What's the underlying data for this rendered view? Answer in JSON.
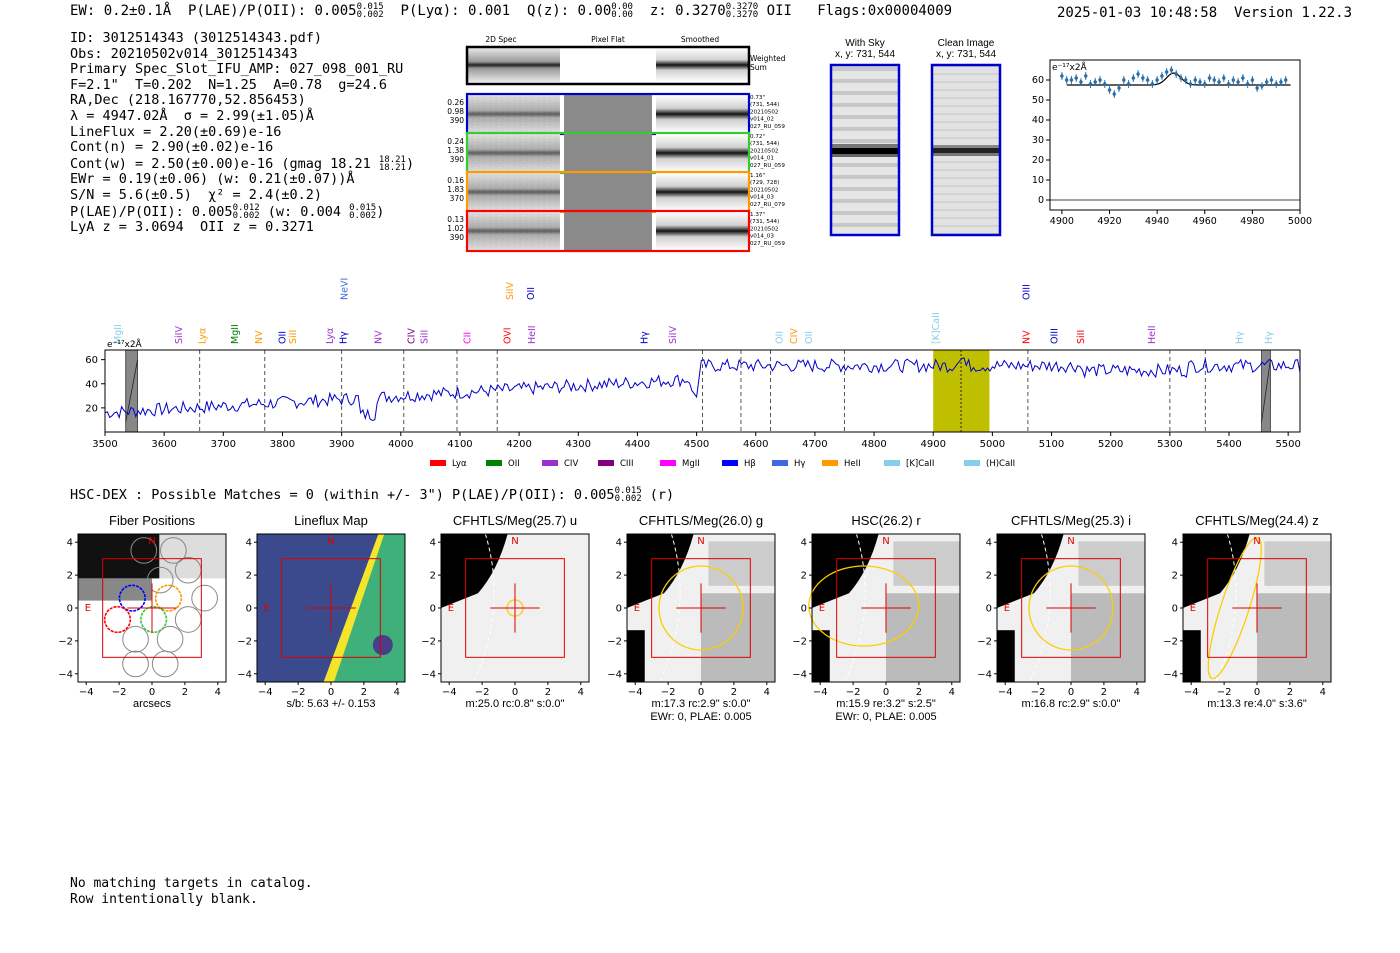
{
  "header": {
    "ew": "EW: 0.2±0.1Å",
    "plae_label": "P(LAE)/P(OII): 0.005",
    "plae_up": "0.015",
    "plae_lo": "0.002",
    "plya": "P(Lyα): 0.001",
    "qz_label": "Q(z): 0.00",
    "qz_up": "0.00",
    "qz_lo": "0.00",
    "z_label": "z: 0.3270",
    "z_up": "0.3270",
    "z_lo": "0.3270",
    "z_line": "OII",
    "flags": "Flags:0x00004009",
    "datetime": "2025-01-03 10:48:58",
    "version": "Version 1.22.3"
  },
  "info": {
    "id": "ID: 3012514343 (3012514343.pdf)",
    "obs": "Obs: 20210502v014_3012514343",
    "primary": "Primary Spec_Slot_IFU_AMP: 027_098_001_RU",
    "params": "F=2.1\"  T=0.202  N=1.25  A=0.78  g=24.6",
    "radec": "RA,Dec (218.167770,52.856453)",
    "lambda": "λ = 4947.02Å  σ = 2.99(±1.05)Å",
    "lineflux": "LineFlux = 2.20(±0.69)e-16",
    "contn": "Cont(n) = 2.90(±0.02)e-16",
    "contw": "Cont(w) = 2.50(±0.00)e-16 (gmag 18.21",
    "gmag_up": "18.21",
    "gmag_lo": "18.21",
    "ewr": "EWr = 0.19(±0.06) (w: 0.21(±0.07))Å",
    "sn": "S/N = 5.6(±0.5)  χ² = 2.4(±0.2)",
    "plae": "P(LAE)/P(OII): 0.005",
    "plae_up": "0.012",
    "plae_lo": "0.002",
    "plae_w": "(w: 0.004",
    "plae_w_up": "0.015",
    "plae_w_lo": "0.002",
    "lya": "LyA z = 3.0694  OII z = 0.3271"
  },
  "fiber_panel": {
    "headers": [
      "2D Spec",
      "Pixel Flat",
      "Smoothed"
    ],
    "weighted_label": [
      "Weighted",
      "Sum"
    ],
    "rows": [
      {
        "color": "#0000cc",
        "left": [
          "0.26",
          "0.98",
          "390"
        ],
        "right": [
          "0.73\"",
          "(731, 544)",
          "20210502",
          "v014_02",
          "027_RU_059"
        ]
      },
      {
        "color": "#33cc33",
        "left": [
          "0.24",
          "1.38",
          "390"
        ],
        "right": [
          "0.72\"",
          "(731, 544)",
          "20210502",
          "v014_01",
          "027_RU_059"
        ]
      },
      {
        "color": "#ff9900",
        "left": [
          "0.16",
          "1.83",
          "370"
        ],
        "right": [
          "1.16\"",
          "(729, 728)",
          "20210502",
          "v014_03",
          "027_RU_079"
        ]
      },
      {
        "color": "#ff0000",
        "left": [
          "0.13",
          "1.02",
          "390"
        ],
        "right": [
          "1.37\"",
          "(731, 544)",
          "20210502",
          "v014_03",
          "027_RU_059"
        ]
      }
    ]
  },
  "sky_panels": [
    {
      "title": "With Sky",
      "coords": "x, y: 731, 544"
    },
    {
      "title": "Clean Image",
      "coords": "x, y: 731, 544"
    }
  ],
  "chart_data": [
    {
      "type": "line",
      "name": "zoom-spectrum",
      "title": "",
      "unit_label": "e⁻¹⁷x2Å",
      "xlim": [
        4895,
        5000
      ],
      "ylim": [
        -5,
        70
      ],
      "xticks": [
        4900,
        4920,
        4940,
        4960,
        4980,
        5000
      ],
      "yticks": [
        0,
        10,
        20,
        30,
        40,
        50,
        60
      ],
      "x": [
        4900,
        4902,
        4904,
        4906,
        4908,
        4910,
        4912,
        4914,
        4916,
        4918,
        4920,
        4922,
        4924,
        4926,
        4928,
        4930,
        4932,
        4934,
        4936,
        4938,
        4940,
        4942,
        4944,
        4946,
        4948,
        4950,
        4952,
        4954,
        4956,
        4958,
        4960,
        4962,
        4964,
        4966,
        4968,
        4970,
        4972,
        4974,
        4976,
        4978,
        4980,
        4982,
        4984,
        4986,
        4988,
        4990,
        4992,
        4994
      ],
      "y": [
        62,
        60,
        60,
        61,
        59,
        62,
        58,
        59,
        60,
        58,
        55,
        53,
        56,
        60,
        58,
        61,
        63,
        61,
        60,
        58,
        60,
        62,
        64,
        65,
        63,
        61,
        60,
        58,
        60,
        59,
        58,
        61,
        60,
        59,
        61,
        58,
        60,
        59,
        61,
        58,
        60,
        56,
        57,
        59,
        60,
        58,
        59,
        60
      ],
      "fit_level": 57.5,
      "fit_peak": 4947,
      "fit_amp": 6,
      "fit_sigma": 3
    },
    {
      "type": "line",
      "name": "full-spectrum",
      "title": "",
      "unit_label": "e⁻¹⁷x2Å",
      "xlim": [
        3500,
        5520
      ],
      "ylim": [
        0,
        68
      ],
      "xticks": [
        3500,
        3600,
        3700,
        3800,
        3900,
        4000,
        4100,
        4200,
        4300,
        4400,
        4500,
        4600,
        4700,
        4800,
        4900,
        5000,
        5100,
        5200,
        5300,
        5400,
        5500
      ],
      "yticks": [
        20,
        40,
        60
      ],
      "masked_ranges": [
        [
          3535,
          3555
        ],
        [
          5455,
          5470
        ]
      ],
      "highlight_range": [
        4900,
        4995
      ],
      "peak_line": 4947,
      "dashed_lines": [
        3660,
        3770,
        3900,
        4005,
        4095,
        4163,
        4510,
        4575,
        4625,
        4750,
        5060,
        5300,
        5360
      ],
      "line_labels": [
        {
          "label": "MgII",
          "wave": 3522,
          "color": "#87ceeb",
          "row": "low"
        },
        {
          "label": "SiIV",
          "wave": 3625,
          "color": "#9932cc",
          "row": "low"
        },
        {
          "label": "Lyα",
          "wave": 3665,
          "color": "#ff9900",
          "row": "low"
        },
        {
          "label": "MgII",
          "wave": 3720,
          "color": "#008000",
          "row": "low"
        },
        {
          "label": "NV",
          "wave": 3760,
          "color": "#ff9900",
          "row": "low"
        },
        {
          "label": "OII",
          "wave": 3800,
          "color": "#0000cc",
          "row": "low"
        },
        {
          "label": "SiII",
          "wave": 3818,
          "color": "#ff9900",
          "row": "low"
        },
        {
          "label": "Lyα",
          "wave": 3880,
          "color": "#9932cc",
          "row": "low"
        },
        {
          "label": "Hγ",
          "wave": 3903,
          "color": "#0000cc",
          "row": "low"
        },
        {
          "label": "NeVI",
          "wave": 3905,
          "color": "#4169e1",
          "row": "high"
        },
        {
          "label": "NV",
          "wave": 3962,
          "color": "#9932cc",
          "row": "low"
        },
        {
          "label": "CIV",
          "wave": 4018,
          "color": "#800080",
          "row": "low"
        },
        {
          "label": "SiII",
          "wave": 4040,
          "color": "#9932cc",
          "row": "low"
        },
        {
          "label": "CII",
          "wave": 4113,
          "color": "#ff00ff",
          "row": "low"
        },
        {
          "label": "OVI",
          "wave": 4180,
          "color": "#ff0000",
          "row": "low"
        },
        {
          "label": "SiIV",
          "wave": 4185,
          "color": "#ff9900",
          "row": "high"
        },
        {
          "label": "OII",
          "wave": 4220,
          "color": "#0000cc",
          "row": "high"
        },
        {
          "label": "HeII",
          "wave": 4222,
          "color": "#9932cc",
          "row": "low"
        },
        {
          "label": "Hγ",
          "wave": 4412,
          "color": "#0000cc",
          "row": "low"
        },
        {
          "label": "SiIV",
          "wave": 4460,
          "color": "#9932cc",
          "row": "low"
        },
        {
          "label": "OII",
          "wave": 4640,
          "color": "#87ceeb",
          "row": "low"
        },
        {
          "label": "CIV",
          "wave": 4665,
          "color": "#ff9900",
          "row": "low"
        },
        {
          "label": "OII",
          "wave": 4690,
          "color": "#87ceeb",
          "row": "low"
        },
        {
          "label": "[K]CaII",
          "wave": 4905,
          "color": "#87ceeb",
          "row": "low"
        },
        {
          "label": "NV",
          "wave": 5058,
          "color": "#ff0000",
          "row": "low"
        },
        {
          "label": "OIII",
          "wave": 5058,
          "color": "#0000cc",
          "row": "high"
        },
        {
          "label": "OIII",
          "wave": 5105,
          "color": "#0000cc",
          "row": "low"
        },
        {
          "label": "SiII",
          "wave": 5150,
          "color": "#ff0000",
          "row": "low"
        },
        {
          "label": "HeII",
          "wave": 5270,
          "color": "#9932cc",
          "row": "low"
        },
        {
          "label": "Hγ",
          "wave": 5418,
          "color": "#87ceeb",
          "row": "low"
        },
        {
          "label": "Hγ",
          "wave": 5468,
          "color": "#87ceeb",
          "row": "low"
        }
      ],
      "legend": [
        {
          "label": "Lyα",
          "color": "#ff0000"
        },
        {
          "label": "OII",
          "color": "#008000"
        },
        {
          "label": "CIV",
          "color": "#9932cc"
        },
        {
          "label": "CIII",
          "color": "#800080"
        },
        {
          "label": "MgII",
          "color": "#ff00ff"
        },
        {
          "label": "Hβ",
          "color": "#0000ff"
        },
        {
          "label": "Hγ",
          "color": "#4169e1"
        },
        {
          "label": "HeII",
          "color": "#ff9900"
        },
        {
          "label": "[K]CaII",
          "color": "#87ceeb"
        },
        {
          "label": "(H)CaII",
          "color": "#87ceeb"
        }
      ]
    }
  ],
  "hsc_line": {
    "text": "HSC-DEX : Possible Matches = 0 (within +/- 3\")  P(LAE)/P(OII): 0.005",
    "up": "0.015",
    "lo": "0.002",
    "tail": "(r)"
  },
  "cutouts": {
    "ticks": [
      "−4",
      "−2",
      "0",
      "2",
      "4"
    ],
    "north": "N",
    "east": "E",
    "panels": [
      {
        "title": "Fiber Positions",
        "caption": [
          "arcsecs"
        ]
      },
      {
        "title": "Lineflux Map",
        "caption": [
          "s/b: 5.63 +/- 0.153"
        ]
      },
      {
        "title": "CFHTLS/Meg(25.7) u",
        "caption": [
          "m:25.0 rc:0.8\"  s:0.0\""
        ]
      },
      {
        "title": "CFHTLS/Meg(26.0) g",
        "caption": [
          "m:17.3 rc:2.9\"  s:0.0\"",
          "EWr: 0, PLAE: 0.005"
        ]
      },
      {
        "title": "HSC(26.2) r",
        "caption": [
          "m:15.9  re:3.2\"  s:2.5\"",
          "EWr: 0, PLAE: 0.005"
        ]
      },
      {
        "title": "CFHTLS/Meg(25.3) i",
        "caption": [
          "m:16.8 rc:2.9\"  s:0.0\""
        ]
      },
      {
        "title": "CFHTLS/Meg(24.4) z",
        "caption": [
          "m:13.3  re:4.0\"  s:3.6\""
        ]
      }
    ]
  },
  "footer": {
    "line1": "No matching targets in catalog.",
    "line2": "Row intentionally blank."
  }
}
